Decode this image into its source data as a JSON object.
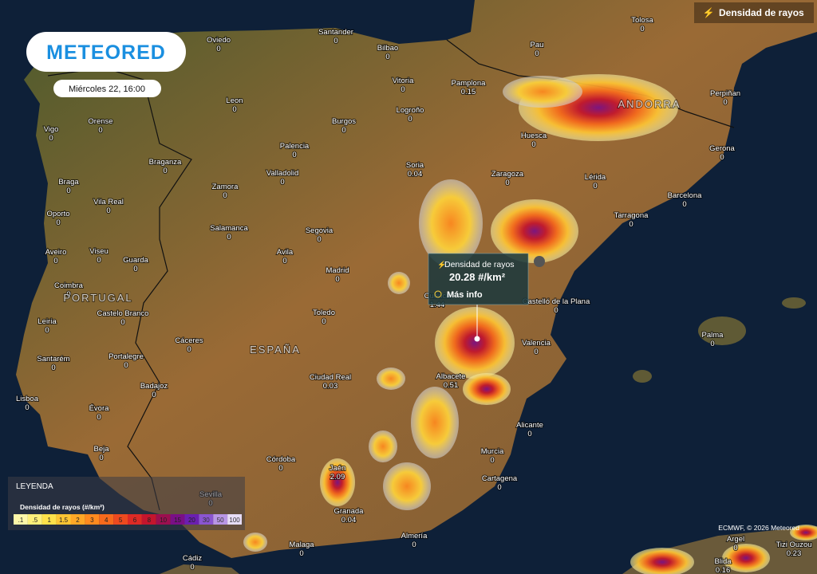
{
  "header": {
    "logo": "METEORED",
    "datetime": "Miércoles 22, 16:00"
  },
  "layer_button": {
    "label": "Densidad de rayos"
  },
  "countries": [
    "PORTUGAL",
    "ESPAÑA",
    "ANDORRA"
  ],
  "cities": [
    {
      "name": "Tolosa",
      "value": 0
    },
    {
      "name": "Santander",
      "value": 0
    },
    {
      "name": "Oviedo",
      "value": 0
    },
    {
      "name": "Bilbao",
      "value": 0
    },
    {
      "name": "Pau",
      "value": 0
    },
    {
      "name": "Vitoria",
      "value": 0
    },
    {
      "name": "Pamplona",
      "value": 0.15
    },
    {
      "name": "Perpiñan",
      "value": 0
    },
    {
      "name": "Leon",
      "value": 0
    },
    {
      "name": "Logroño",
      "value": 0
    },
    {
      "name": "Orense",
      "value": 0
    },
    {
      "name": "Burgos",
      "value": 0
    },
    {
      "name": "Vigo",
      "value": 0
    },
    {
      "name": "Huesca",
      "value": 0
    },
    {
      "name": "Gerona",
      "value": 0
    },
    {
      "name": "Palencia",
      "value": 0
    },
    {
      "name": "Soria",
      "value": 0.04
    },
    {
      "name": "Braganza",
      "value": 0
    },
    {
      "name": "Valladolid",
      "value": 0
    },
    {
      "name": "Zaragoza",
      "value": 0
    },
    {
      "name": "Lérida",
      "value": 0
    },
    {
      "name": "Braga",
      "value": 0
    },
    {
      "name": "Zamora",
      "value": 0
    },
    {
      "name": "Barcelona",
      "value": 0
    },
    {
      "name": "Vila Real",
      "value": 0
    },
    {
      "name": "Oporto",
      "value": 0
    },
    {
      "name": "Tarragona",
      "value": 0
    },
    {
      "name": "Salamanca",
      "value": 0
    },
    {
      "name": "Segovia",
      "value": 0
    },
    {
      "name": "Aveiro",
      "value": 0
    },
    {
      "name": "Viseu",
      "value": 0
    },
    {
      "name": "Avila",
      "value": 0
    },
    {
      "name": "Guarda",
      "value": 0
    },
    {
      "name": "Madrid",
      "value": 0
    },
    {
      "name": "Coimbra",
      "value": 0
    },
    {
      "name": "Castelló de la Plana",
      "value": 0
    },
    {
      "name": "Cuenca",
      "value": 1.44
    },
    {
      "name": "Leiria",
      "value": 0
    },
    {
      "name": "Castelo Branco",
      "value": 0
    },
    {
      "name": "Toledo",
      "value": 0
    },
    {
      "name": "Cáceres",
      "value": 0
    },
    {
      "name": "Valencia",
      "value": 0
    },
    {
      "name": "Palma",
      "value": 0
    },
    {
      "name": "Portalegre",
      "value": 0
    },
    {
      "name": "Santarém",
      "value": 0
    },
    {
      "name": "Ciudad Real",
      "value": 0.03
    },
    {
      "name": "Albacete",
      "value": 0.51
    },
    {
      "name": "Badajoz",
      "value": 0
    },
    {
      "name": "Lisboa",
      "value": 0
    },
    {
      "name": "Évora",
      "value": 0
    },
    {
      "name": "Alicante",
      "value": 0
    },
    {
      "name": "Beja",
      "value": 0
    },
    {
      "name": "Murcia",
      "value": 0
    },
    {
      "name": "Córdoba",
      "value": 0
    },
    {
      "name": "Jaén",
      "value": 2.09
    },
    {
      "name": "Cartagena",
      "value": 0
    },
    {
      "name": "Sevilla",
      "value": 0
    },
    {
      "name": "Granada",
      "value": 0.04
    },
    {
      "name": "Almería",
      "value": 0
    },
    {
      "name": "Malaga",
      "value": 0
    },
    {
      "name": "Cádiz",
      "value": 0
    },
    {
      "name": "Argel",
      "value": 0
    },
    {
      "name": "Tizi Ouzou",
      "value": 0.23
    },
    {
      "name": "Blida",
      "value": 0.16
    }
  ],
  "tooltip": {
    "title": "Densidad de rayos",
    "value": "20.28 #/km²",
    "link": "Más info"
  },
  "legend": {
    "heading": "LEYENDA",
    "title": "Densidad de rayos (#/km²)",
    "scale": [
      {
        "value": 0.1,
        "label": ".1",
        "color": "#fff7a8"
      },
      {
        "value": 0.5,
        "label": ".5",
        "color": "#ffef7a"
      },
      {
        "value": 1,
        "label": "1",
        "color": "#ffe14a"
      },
      {
        "value": 1.5,
        "label": "1.5",
        "color": "#ffc533"
      },
      {
        "value": 2,
        "label": "2",
        "color": "#ffa726"
      },
      {
        "value": 3,
        "label": "3",
        "color": "#ff8a1f"
      },
      {
        "value": 4,
        "label": "4",
        "color": "#f86a1c"
      },
      {
        "value": 5,
        "label": "5",
        "color": "#ee4a1f"
      },
      {
        "value": 6,
        "label": "6",
        "color": "#dd2a25"
      },
      {
        "value": 8,
        "label": "8",
        "color": "#c4152d"
      },
      {
        "value": 10,
        "label": "10",
        "color": "#9c0f4f"
      },
      {
        "value": 15,
        "label": "15",
        "color": "#7a0f86"
      },
      {
        "value": 20,
        "label": "20",
        "color": "#6b1fb0"
      },
      {
        "value": 30,
        "label": "30",
        "color": "#8a55d0"
      },
      {
        "value": 50,
        "label": "50",
        "color": "#b896e6"
      },
      {
        "value": 100,
        "label": "100",
        "color": "#e6dcf7"
      }
    ]
  },
  "credit": "ECMWF, © 2026 Meteored"
}
